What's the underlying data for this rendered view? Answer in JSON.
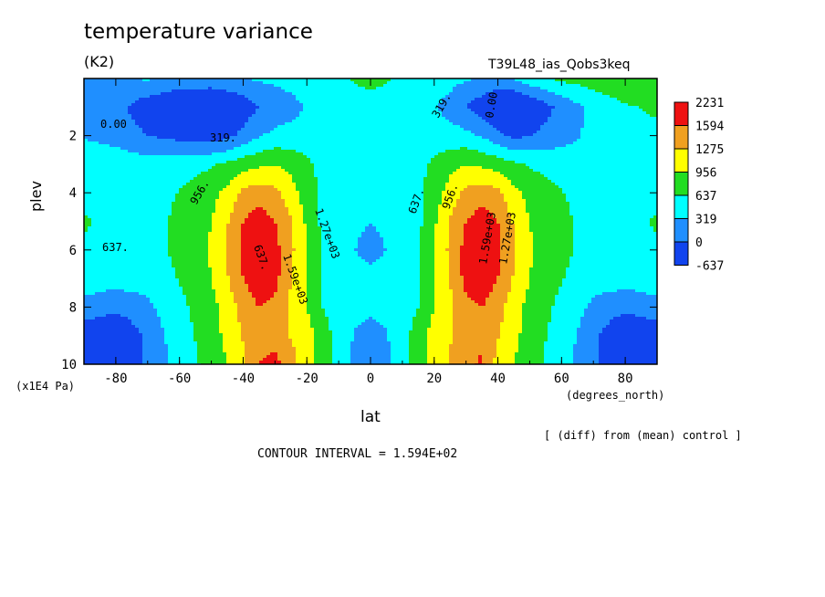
{
  "chart_data": {
    "type": "heatmap",
    "title": "temperature variance",
    "units": "(K2)",
    "run_label": "T39L48_ias_Qobs3keq",
    "ylabel": "plev",
    "y_units": "(x1E4 Pa)",
    "xlabel": "lat",
    "x_units": "(degrees_north)",
    "diff_note": "[ (diff) from (mean) control ]",
    "contour_interval": "CONTOUR INTERVAL = 1.594E+02",
    "xlim": [
      -90,
      90
    ],
    "ylim": [
      0,
      10
    ],
    "y_inverted": true,
    "x_ticks": [
      "-80",
      "-60",
      "-40",
      "-20",
      "0",
      "20",
      "40",
      "60",
      "80"
    ],
    "x_tick_values": [
      -80,
      -60,
      -40,
      -20,
      0,
      20,
      40,
      60,
      80
    ],
    "y_ticks": [
      "2",
      "4",
      "6",
      "8",
      "10"
    ],
    "y_tick_values": [
      2,
      4,
      6,
      8,
      10
    ],
    "colorbar": {
      "labels": [
        "2231",
        "1594",
        "1275",
        "956",
        "637",
        "319",
        "0",
        "-637"
      ],
      "colors": [
        "#ee1111",
        "#f0a020",
        "#ffff00",
        "#22dd22",
        "#00ffff",
        "#1f8fff",
        "#1144ee"
      ]
    },
    "contour_labels": [
      "0.00",
      "319.",
      "956.",
      "637.",
      "1.59e+03",
      "1.27e+03",
      "637.",
      "956.",
      "1.59e+03",
      "1.27e+03",
      "319.",
      "0.00",
      "637."
    ],
    "lat": [
      -90,
      -80,
      -70,
      -60,
      -50,
      -45,
      -40,
      -35,
      -30,
      -25,
      -20,
      -15,
      -10,
      -5,
      0,
      5,
      10,
      15,
      20,
      25,
      30,
      35,
      40,
      45,
      50,
      60,
      70,
      80,
      90
    ],
    "plev": [
      0,
      1,
      2,
      3,
      4,
      5,
      6,
      7,
      8,
      9,
      10
    ],
    "values": [
      [
        300,
        300,
        350,
        250,
        250,
        300,
        320,
        350,
        400,
        450,
        500,
        550,
        600,
        650,
        700,
        650,
        600,
        550,
        500,
        420,
        350,
        300,
        250,
        350,
        500,
        700,
        800,
        900,
        950
      ],
      [
        200,
        100,
        -200,
        -400,
        -500,
        -400,
        -200,
        0,
        100,
        200,
        350,
        450,
        500,
        550,
        550,
        550,
        500,
        450,
        350,
        200,
        0,
        -200,
        -400,
        -500,
        -300,
        100,
        400,
        600,
        700
      ],
      [
        300,
        200,
        0,
        -100,
        -200,
        -100,
        100,
        300,
        400,
        450,
        450,
        450,
        400,
        400,
        400,
        400,
        400,
        450,
        450,
        450,
        400,
        300,
        100,
        -100,
        0,
        200,
        400,
        500,
        550
      ],
      [
        500,
        500,
        450,
        500,
        600,
        700,
        800,
        900,
        950,
        850,
        700,
        550,
        450,
        400,
        400,
        400,
        450,
        550,
        700,
        850,
        950,
        900,
        800,
        700,
        600,
        500,
        450,
        500,
        500
      ],
      [
        600,
        550,
        500,
        650,
        850,
        1050,
        1350,
        1450,
        1350,
        1100,
        800,
        550,
        400,
        350,
        350,
        350,
        400,
        550,
        800,
        1100,
        1350,
        1450,
        1350,
        1050,
        850,
        650,
        500,
        550,
        600
      ],
      [
        650,
        600,
        520,
        700,
        950,
        1250,
        1600,
        1750,
        1600,
        1300,
        900,
        560,
        380,
        330,
        320,
        330,
        380,
        560,
        900,
        1300,
        1600,
        1750,
        1600,
        1250,
        950,
        700,
        520,
        600,
        650
      ],
      [
        620,
        580,
        550,
        700,
        1000,
        1300,
        1650,
        1850,
        1700,
        1350,
        950,
        600,
        400,
        320,
        300,
        320,
        400,
        600,
        950,
        1350,
        1700,
        1850,
        1650,
        1300,
        1000,
        700,
        550,
        580,
        620
      ],
      [
        500,
        450,
        450,
        650,
        950,
        1250,
        1600,
        1800,
        1700,
        1300,
        950,
        580,
        380,
        340,
        340,
        340,
        380,
        580,
        950,
        1300,
        1700,
        1800,
        1600,
        1250,
        950,
        650,
        450,
        450,
        500
      ],
      [
        200,
        100,
        250,
        550,
        850,
        1100,
        1400,
        1600,
        1500,
        1200,
        950,
        640,
        420,
        380,
        360,
        380,
        420,
        640,
        950,
        1200,
        1500,
        1600,
        1400,
        1100,
        850,
        550,
        250,
        100,
        200
      ],
      [
        -200,
        -400,
        100,
        500,
        800,
        1050,
        1300,
        1500,
        1450,
        1250,
        1100,
        800,
        500,
        300,
        250,
        300,
        500,
        800,
        1100,
        1250,
        1450,
        1500,
        1300,
        1050,
        800,
        500,
        100,
        -400,
        -200
      ],
      [
        -300,
        -400,
        50,
        450,
        750,
        950,
        1200,
        1600,
        1700,
        1400,
        1100,
        800,
        500,
        250,
        150,
        250,
        500,
        800,
        1100,
        1300,
        1500,
        1650,
        1150,
        950,
        750,
        450,
        50,
        -400,
        -300
      ]
    ]
  }
}
